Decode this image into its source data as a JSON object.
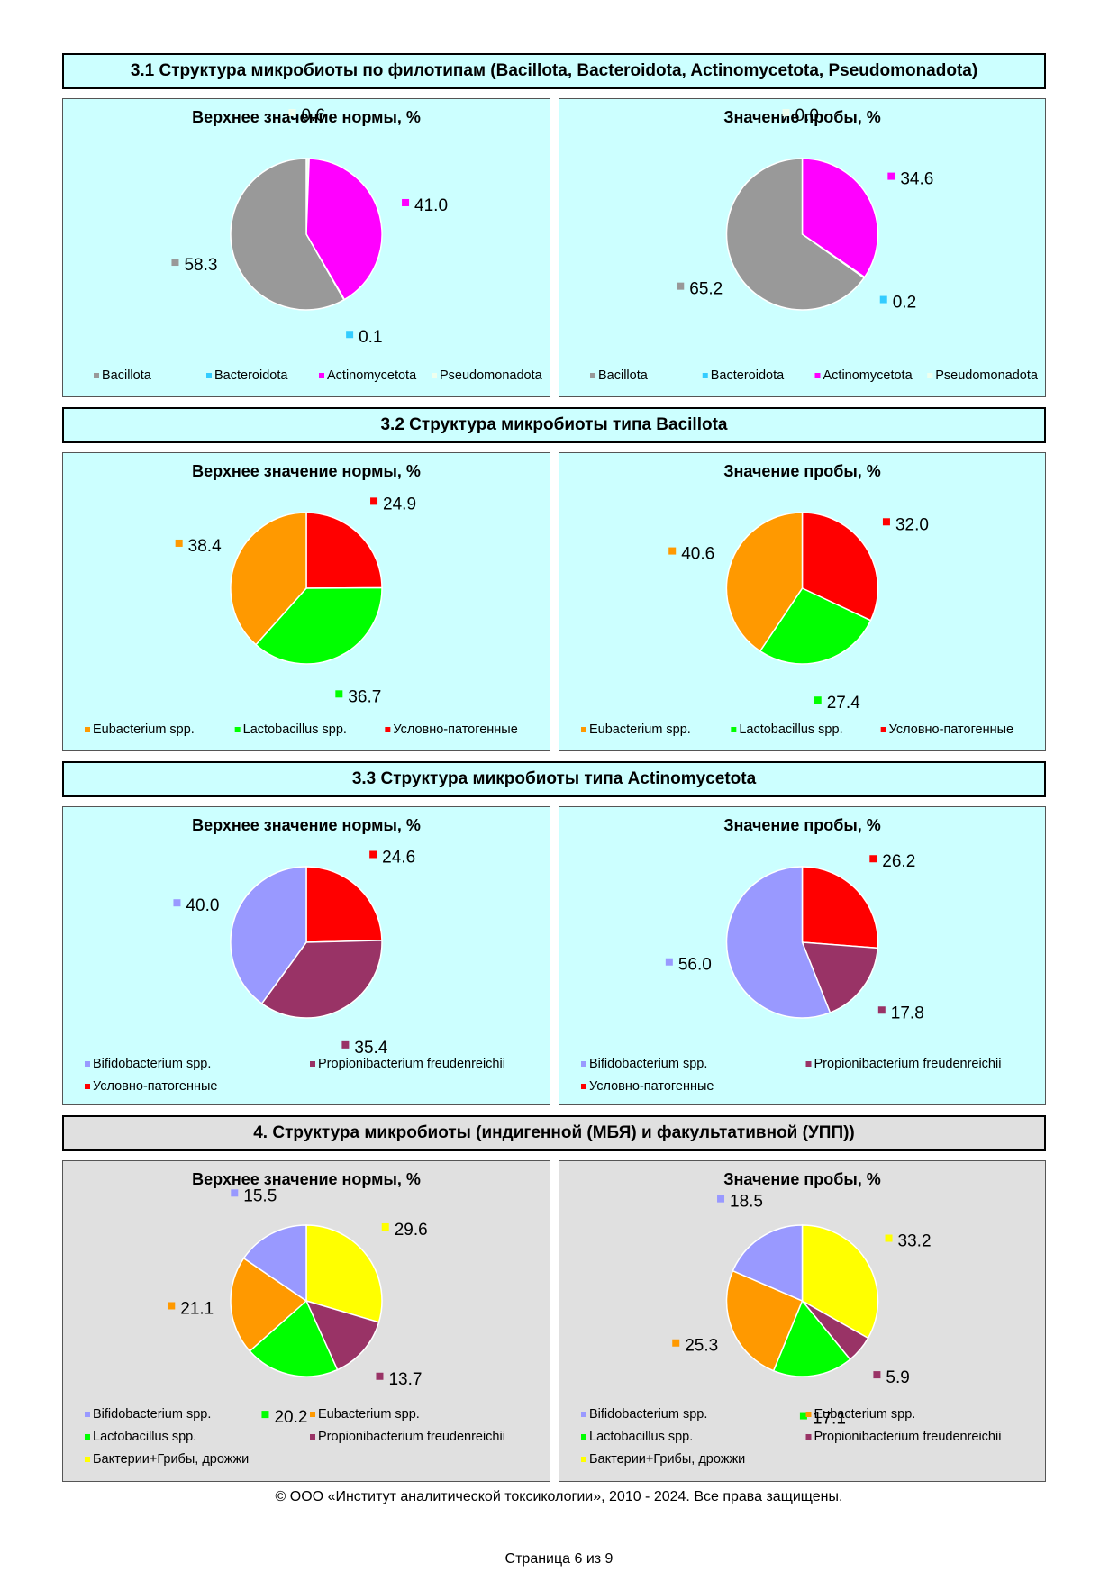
{
  "sections": [
    {
      "title": "3.1 Структура микробиоты по филотипам (Bacillota, Bacteroidota, Actinomycetota, Pseudomonadota)",
      "background": "#ccffff"
    },
    {
      "title": "3.2 Структура микробиоты типа Bacillota",
      "background": "#ccffff"
    },
    {
      "title": "3.3 Структура микробиоты типа Actinomycetota",
      "background": "#ccffff"
    },
    {
      "title": "4. Структура микробиоты (индигенной (МБЯ) и факультативной (УПП))",
      "background": "#e0e0e0"
    }
  ],
  "chart_data": [
    {
      "type": "pie",
      "title": "Верхнее значение нормы, %",
      "categories": [
        "Bacillota",
        "Bacteroidota",
        "Actinomycetota",
        "Pseudomonadota"
      ],
      "values": [
        58.3,
        0.1,
        41.0,
        0.6
      ],
      "labels": [
        "58.3",
        "0.1",
        "41.0",
        "0.6"
      ],
      "colors": [
        "#999999",
        "#33ccff",
        "#ff00ff",
        "#eeffee"
      ],
      "legend": "bottom"
    },
    {
      "type": "pie",
      "title": "Значение пробы, %",
      "categories": [
        "Bacillota",
        "Bacteroidota",
        "Actinomycetota",
        "Pseudomonadota"
      ],
      "values": [
        65.2,
        0.2,
        34.6,
        0.0
      ],
      "labels": [
        "65.2",
        "0.2",
        "34.6",
        "0.0"
      ],
      "colors": [
        "#999999",
        "#33ccff",
        "#ff00ff",
        "#eeffee"
      ],
      "legend": "bottom"
    },
    {
      "type": "pie",
      "title": "Верхнее значение нормы, %",
      "categories": [
        "Eubacterium spp.",
        "Lactobacillus spp.",
        "Условно-патогенные"
      ],
      "values": [
        38.4,
        36.7,
        24.9
      ],
      "labels": [
        "38.4",
        "36.7",
        "24.9"
      ],
      "colors": [
        "#ff9900",
        "#00ff00",
        "#ff0000"
      ],
      "legend": "bottom"
    },
    {
      "type": "pie",
      "title": "Значение пробы, %",
      "categories": [
        "Eubacterium spp.",
        "Lactobacillus spp.",
        "Условно-патогенные"
      ],
      "values": [
        40.6,
        27.4,
        32.0
      ],
      "labels": [
        "40.6",
        "27.4",
        "32.0"
      ],
      "colors": [
        "#ff9900",
        "#00ff00",
        "#ff0000"
      ],
      "legend": "bottom"
    },
    {
      "type": "pie",
      "title": "Верхнее значение нормы, %",
      "categories": [
        "Bifidobacterium spp.",
        "Propionibacterium freudenreichii",
        "Условно-патогенные"
      ],
      "values": [
        40.0,
        35.4,
        24.6
      ],
      "labels": [
        "40.0",
        "35.4",
        "24.6"
      ],
      "colors": [
        "#9999ff",
        "#993366",
        "#ff0000"
      ],
      "legend": "bottom"
    },
    {
      "type": "pie",
      "title": "Значение пробы, %",
      "categories": [
        "Bifidobacterium spp.",
        "Propionibacterium freudenreichii",
        "Условно-патогенные"
      ],
      "values": [
        56.0,
        17.8,
        26.2
      ],
      "labels": [
        "56.0",
        "17.8",
        "26.2"
      ],
      "colors": [
        "#9999ff",
        "#993366",
        "#ff0000"
      ],
      "legend": "bottom"
    },
    {
      "type": "pie",
      "title": "Верхнее значение нормы, %",
      "categories": [
        "Bifidobacterium spp.",
        "Eubacterium spp.",
        "Lactobacillus spp.",
        "Propionibacterium freudenreichii",
        "Бактерии+Грибы, дрожжи"
      ],
      "values": [
        15.5,
        21.1,
        20.2,
        13.7,
        29.6
      ],
      "labels": [
        "15.5",
        "21.1",
        "20.2",
        "13.7",
        "29.6"
      ],
      "colors": [
        "#9999ff",
        "#ff9900",
        "#00ff00",
        "#993366",
        "#ffff00"
      ],
      "legend": "bottom"
    },
    {
      "type": "pie",
      "title": "Значение пробы, %",
      "categories": [
        "Bifidobacterium spp.",
        "Eubacterium spp.",
        "Lactobacillus spp.",
        "Propionibacterium freudenreichii",
        "Бактерии+Грибы, дрожжи"
      ],
      "values": [
        18.5,
        25.3,
        17.1,
        5.9,
        33.2
      ],
      "labels": [
        "18.5",
        "25.3",
        "17.1",
        "5.9",
        "33.2"
      ],
      "colors": [
        "#9999ff",
        "#ff9900",
        "#00ff00",
        "#993366",
        "#ffff00"
      ],
      "legend": "bottom"
    }
  ],
  "footer": {
    "copyright": "© ООО «Институт аналитической токсикологии», 2010 - 2024. Все права защищены.",
    "page": "Страница 6 из 9"
  }
}
